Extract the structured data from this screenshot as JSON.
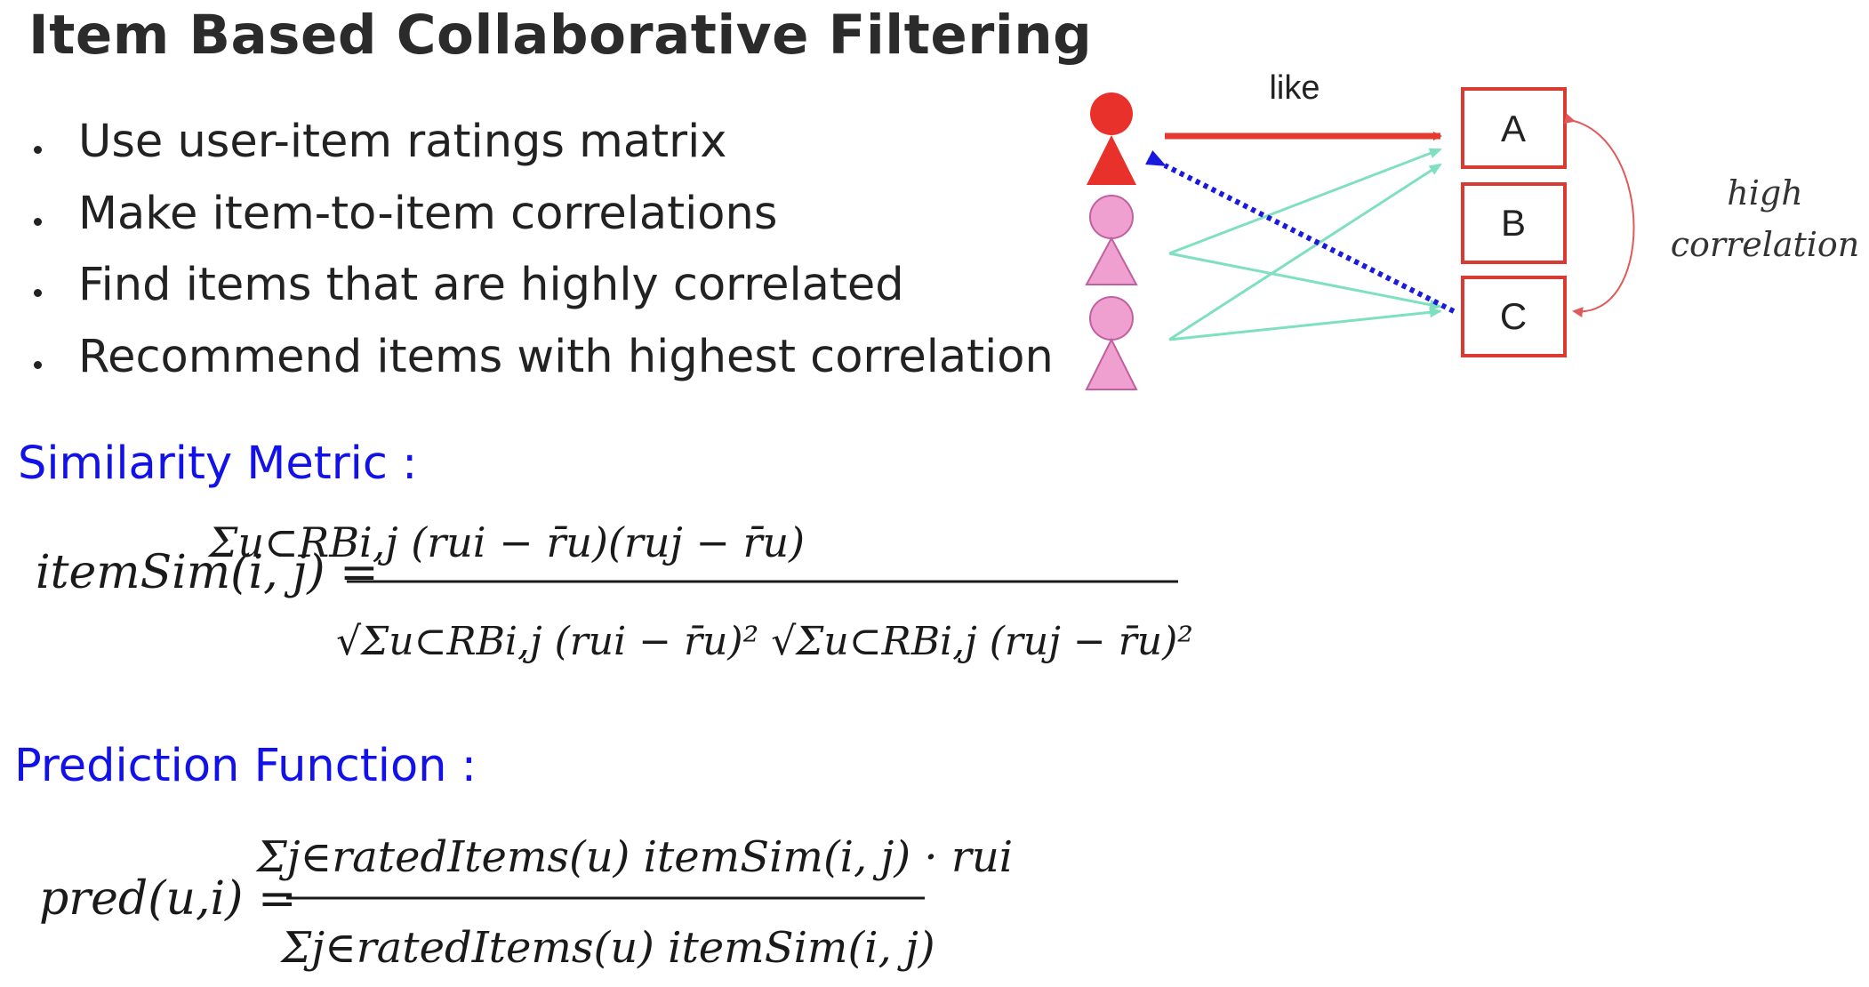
{
  "slide": {
    "title": "Item Based Collaborative Filtering",
    "bullets": [
      "Use user-item ratings matrix",
      "Make item-to-item correlations",
      "Find items that are highly correlated",
      "Recommend items with highest correlation"
    ]
  },
  "diagram": {
    "edge_label": "like",
    "items": [
      "A",
      "B",
      "C"
    ],
    "correlation_label_line1": "high",
    "correlation_label_line2": "correlation",
    "colors": {
      "active_user": "#e8312a",
      "other_users": "#f0a0d0",
      "item_border": "#d93a32",
      "like_arrow": "#e53a2f",
      "rating_lines": "#7fe0c0",
      "recommend_arrow": "#1a1adf"
    }
  },
  "similarity": {
    "heading": "Similarity Metric :",
    "lhs": "itemSim(i, j) =",
    "numerator": "Σu⊂RBi,j (rui − r̄u)(ruj − r̄u)",
    "denominator": "√Σu⊂RBi,j (rui − r̄u)² √Σu⊂RBi,j (ruj − r̄u)²"
  },
  "prediction": {
    "heading": "Prediction Function :",
    "lhs": "pred(u,i) =",
    "numerator": "Σj∈ratedItems(u) itemSim(i, j) · rui",
    "denominator": "Σj∈ratedItems(u) itemSim(i, j)"
  },
  "colors": {
    "heading_blue": "#1212e8",
    "title_text": "#2b2b2b"
  }
}
